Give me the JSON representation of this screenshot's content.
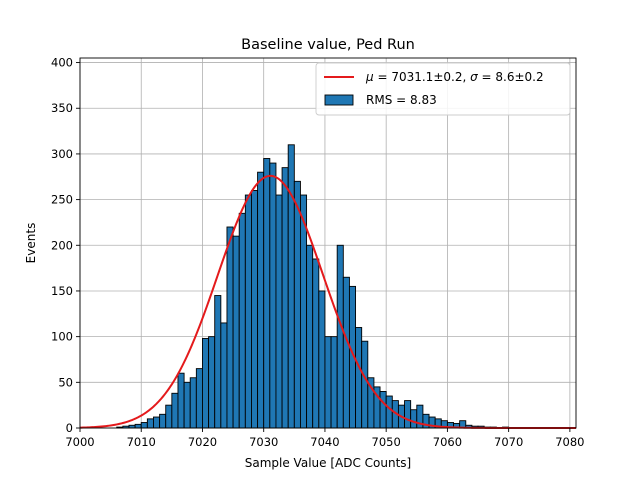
{
  "chart_data": {
    "type": "bar",
    "title": "Baseline value, Ped Run",
    "xlabel": "Sample Value [ADC Counts]",
    "ylabel": "Events",
    "xlim": [
      7000,
      7081
    ],
    "ylim": [
      0,
      405
    ],
    "grid": true,
    "xticks": [
      7000,
      7010,
      7020,
      7030,
      7040,
      7050,
      7060,
      7070,
      7080
    ],
    "yticks": [
      0,
      50,
      100,
      150,
      200,
      250,
      300,
      350,
      400
    ],
    "bin_start": 7000,
    "bin_width": 1,
    "histogram": {
      "name": "RMS = 8.83",
      "color": "#1f77b4",
      "values": [
        0,
        0,
        0,
        0,
        0,
        0,
        1,
        2,
        3,
        4,
        6,
        10,
        12,
        15,
        25,
        38,
        60,
        50,
        55,
        65,
        98,
        100,
        145,
        115,
        220,
        210,
        235,
        255,
        260,
        280,
        295,
        290,
        255,
        285,
        310,
        270,
        255,
        200,
        185,
        150,
        100,
        100,
        200,
        165,
        155,
        110,
        95,
        55,
        45,
        40,
        35,
        30,
        25,
        30,
        20,
        25,
        15,
        12,
        10,
        8,
        6,
        5,
        8,
        3,
        2,
        2,
        1,
        1,
        0,
        1,
        0,
        0,
        0,
        0,
        0,
        0,
        0,
        0,
        0,
        0,
        0
      ]
    },
    "fit": {
      "name": "μ = 7031.1±0.2, σ = 8.6±0.2",
      "color": "#e41a1c",
      "mu": 7031.1,
      "sigma": 8.6,
      "amplitude": 276,
      "x_range": [
        7000,
        7081
      ]
    },
    "legend": {
      "placement": "top-right",
      "fit_label_parts": {
        "mu_symbol": "μ",
        "mu_value": " = 7031.1±0.2, ",
        "sigma_symbol": "σ",
        "sigma_value": " = 8.6±0.2"
      },
      "hist_label": "RMS = 8.83"
    }
  }
}
